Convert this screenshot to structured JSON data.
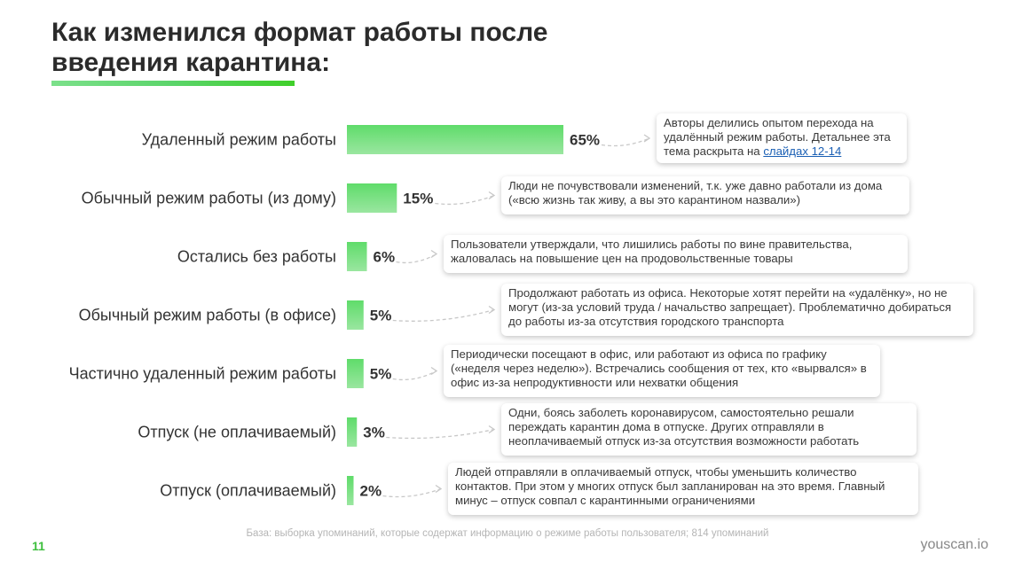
{
  "header": {
    "title_line1": "Как изменился формат работы после",
    "title_line2": "введения карантина:"
  },
  "chart_data": {
    "type": "bar",
    "orientation": "horizontal",
    "categories": [
      "Удаленный режим работы",
      "Обычный режим работы (из дому)",
      "Остались без работы",
      "Обычный режим работы (в офисе)",
      "Частично удаленный режим работы",
      "Отпуск (не оплачиваемый)",
      "Отпуск  (оплачиваемый)"
    ],
    "values": [
      65,
      15,
      6,
      5,
      5,
      3,
      2
    ],
    "value_labels": [
      "65%",
      "15%",
      "6%",
      "5%",
      "5%",
      "3%",
      "2%"
    ],
    "unit": "%",
    "xlim": [
      0,
      65
    ],
    "bar_color_top": "#5fdc6a",
    "bar_color_bottom": "#9ae6a0",
    "annotations": [
      {
        "text": "Авторы делились опытом перехода на удалённый режим работы. Детальнее эта тема раскрыта на ",
        "link": "слайдах 12-14"
      },
      {
        "text": "Люди не почувствовали изменений, т.к. уже давно работали из дома («всю жизнь так живу, а вы это карантином назвали»)",
        "link": ""
      },
      {
        "text": "Пользователи утверждали, что лишились работы по вине правительства, жаловалась на повышение цен на продовольственные товары",
        "link": ""
      },
      {
        "text": "Продолжают работать из офиса. Некоторые хотят перейти на «удалёнку», но не могут (из-за условий труда / начальство запрещает). Проблематично добираться до работы из-за отсутствия городского транспорта",
        "link": ""
      },
      {
        "text": "Периодически посещают в офис, или работают из офиса по графику («неделя через неделю»). Встречались сообщения от тех, кто «вырвался» в офис из-за непродуктивности или нехватки общения",
        "link": ""
      },
      {
        "text": "Одни, боясь заболеть коронавирусом, самостоятельно решали переждать карантин дома в отпуске.  Других отправляли в неоплачиваемый отпуск из-за отсутствия возможности работать",
        "link": ""
      },
      {
        "text": "Людей отправляли в оплачиваемый отпуск, чтобы уменьшить количество контактов. При этом у многих отпуск был запланирован на это время. Главный минус – отпуск совпал с карантинными ограничениями",
        "link": ""
      }
    ]
  },
  "footer": {
    "note": "База: выборка упоминаний, которые содержат информацию о режиме работы пользователя; 814 упоминаний",
    "page_number": "11",
    "brand": "youscan.io"
  },
  "colors": {
    "accent_green": "#3fcf2a",
    "connector": "#c8c8c8",
    "link": "#1a5fb4"
  }
}
